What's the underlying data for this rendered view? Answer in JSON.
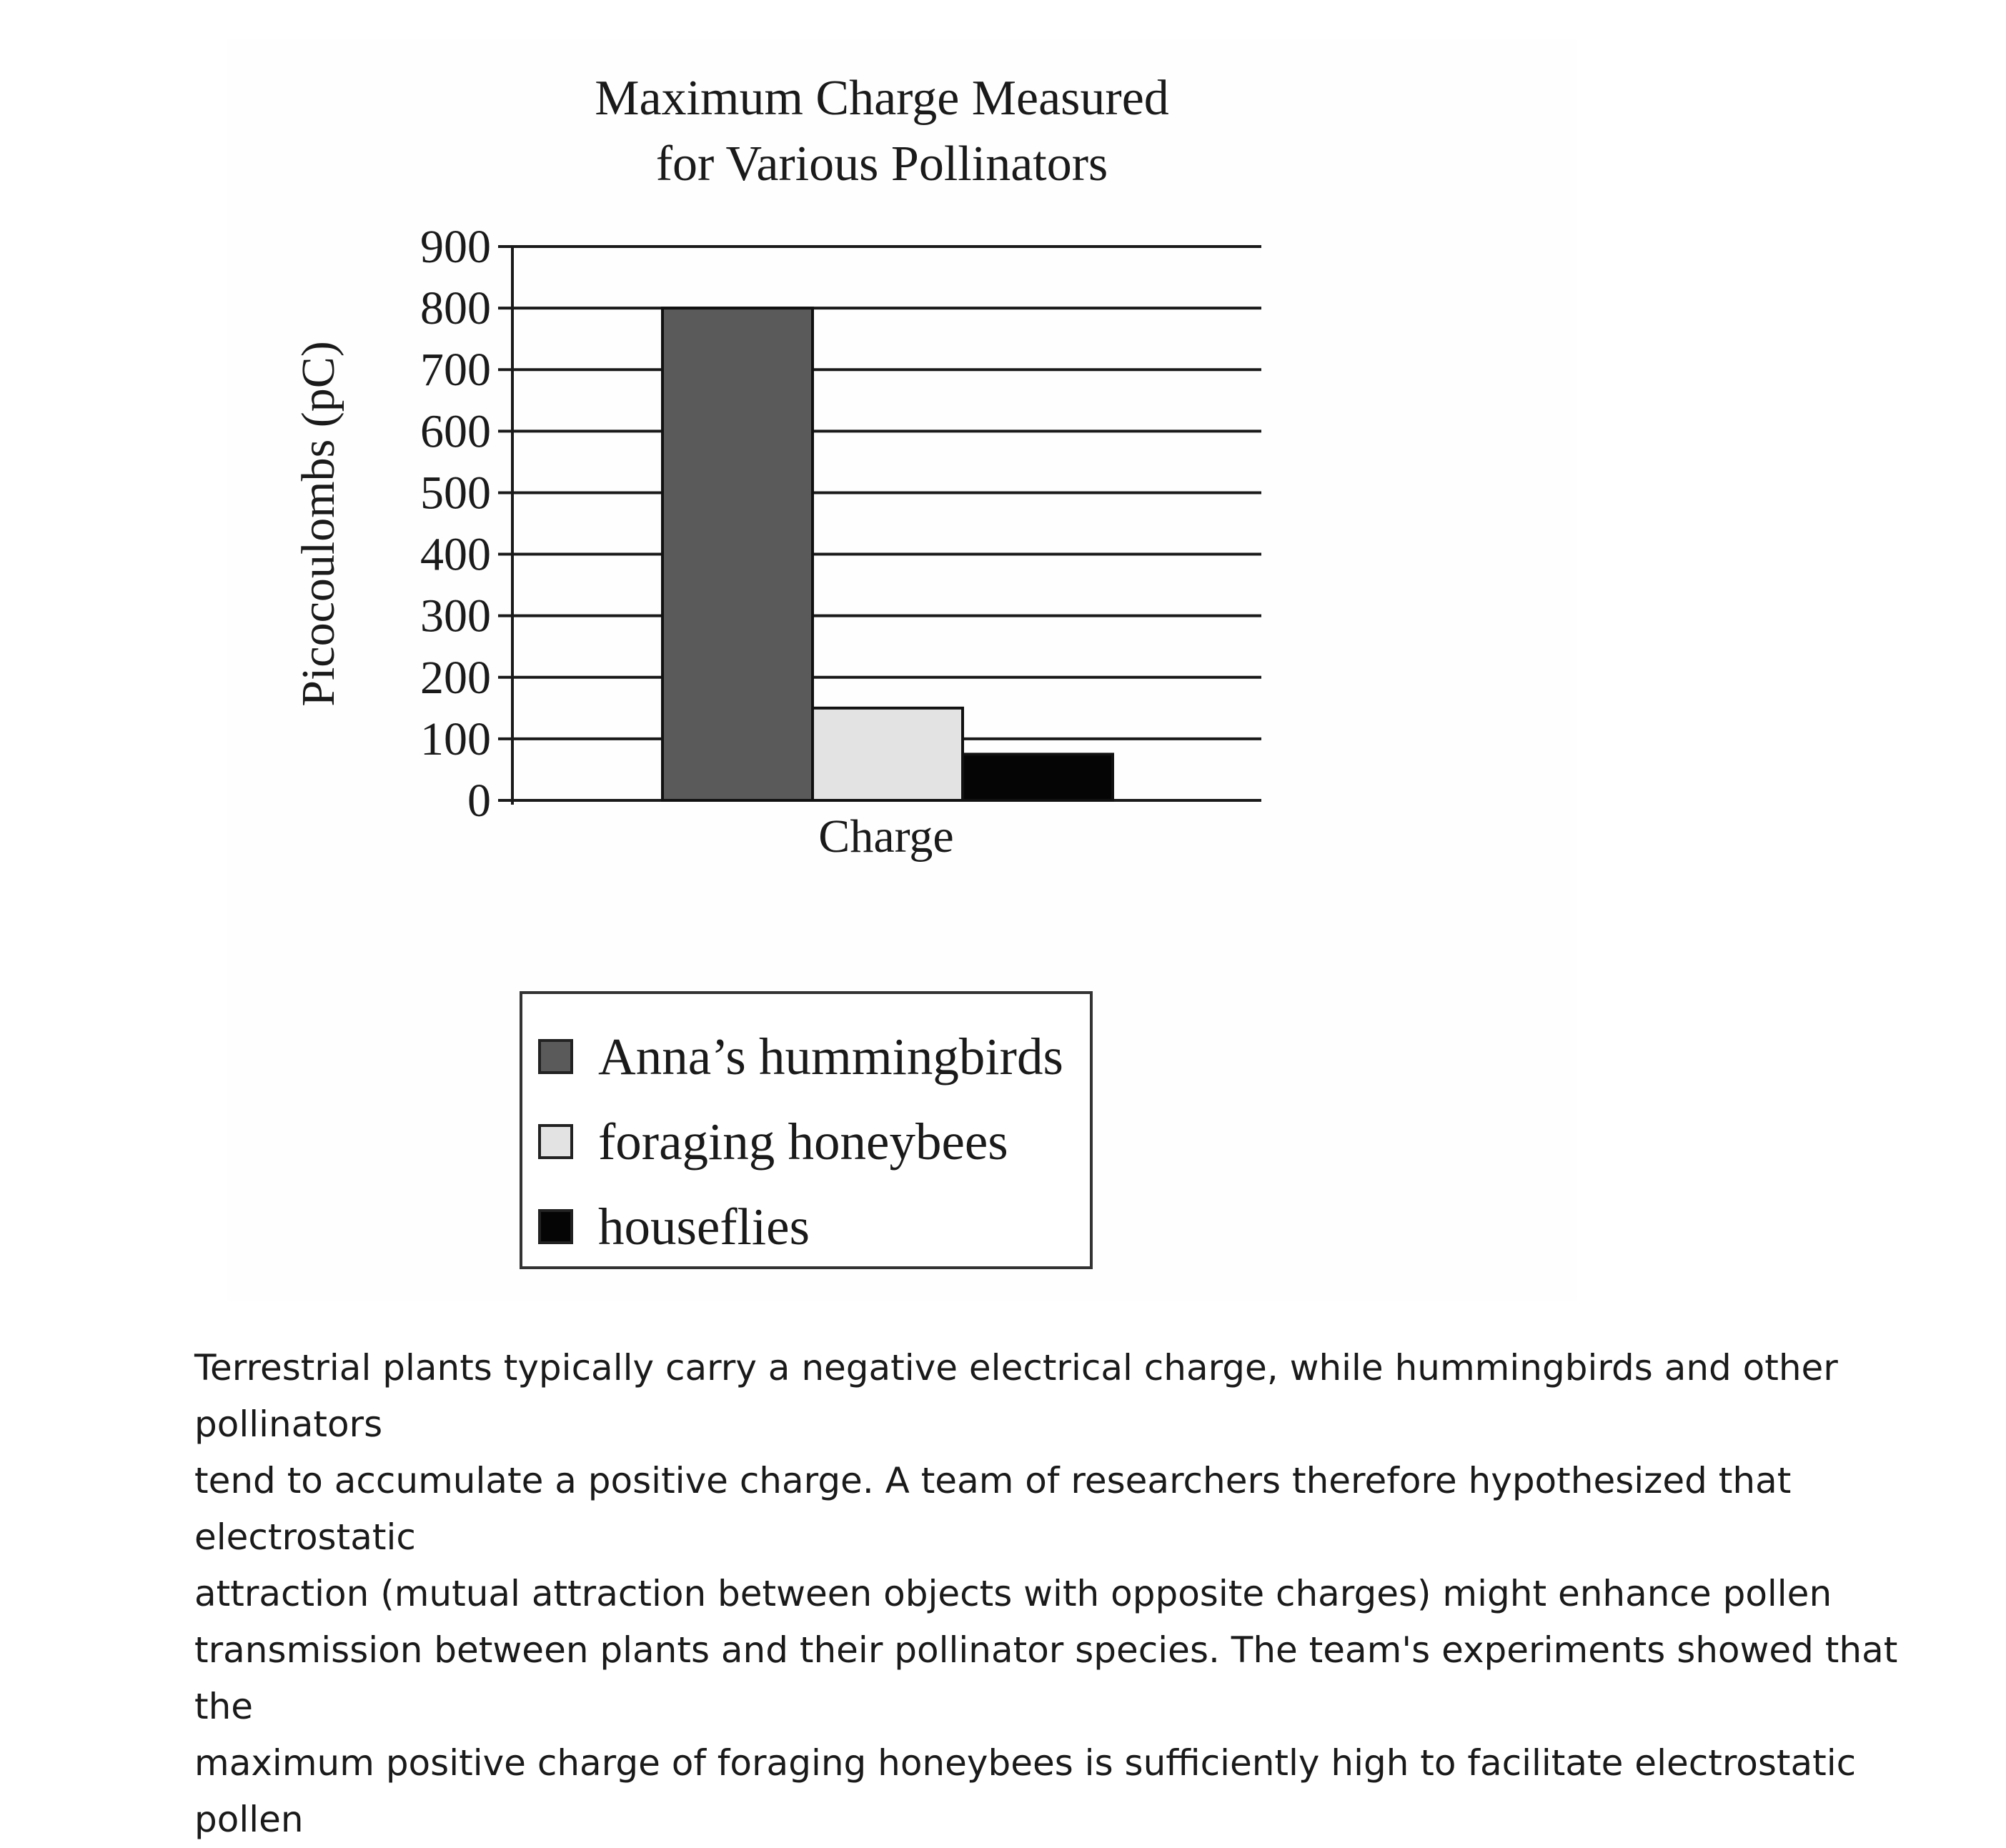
{
  "chart_data": {
    "type": "bar",
    "title": "Maximum Charge Measured\nfor Various Pollinators",
    "title_lines": [
      "Maximum Charge Measured",
      "for Various Pollinators"
    ],
    "xlabel": "Charge",
    "ylabel": "Picocoulombs (pC)",
    "categories": [
      "Charge"
    ],
    "ylim": [
      0,
      900
    ],
    "yticks": [
      "0",
      "100",
      "200",
      "300",
      "400",
      "500",
      "600",
      "700",
      "800",
      "900"
    ],
    "grid": true,
    "legend_position": "bottom",
    "series": [
      {
        "name": "Anna’s hummingbirds",
        "values": [
          800
        ],
        "color": "#5a5a5a"
      },
      {
        "name": "foraging honeybees",
        "values": [
          150
        ],
        "color": "#e3e3e3"
      },
      {
        "name": "houseflies",
        "values": [
          75
        ],
        "color": "#050505"
      }
    ]
  },
  "passage": {
    "text": "Terrestrial plants typically carry a negative electrical charge, while hummingbirds and other pollinators\ntend to accumulate a positive charge. A team of researchers therefore hypothesized that electrostatic\nattraction (mutual attraction between objects with opposite charges) might enhance pollen\ntransmission between plants and their pollinator species. The team's experiments showed that the\nmaximum positive charge of foraging honeybees is sufficiently high to facilitate electrostatic pollen"
  }
}
